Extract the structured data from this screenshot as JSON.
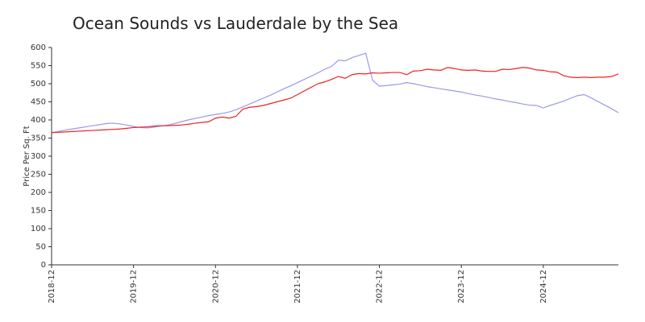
{
  "chart_data": {
    "type": "line",
    "title": "Ocean Sounds vs Lauderdale by the Sea",
    "y_label": "Price Per Sq. Ft",
    "x": [
      "2018-12",
      "2019-01",
      "2019-02",
      "2019-03",
      "2019-04",
      "2019-05",
      "2019-06",
      "2019-07",
      "2019-08",
      "2019-09",
      "2019-10",
      "2019-11",
      "2019-12",
      "2020-01",
      "2020-02",
      "2020-03",
      "2020-04",
      "2020-05",
      "2020-06",
      "2020-07",
      "2020-08",
      "2020-09",
      "2020-10",
      "2020-11",
      "2020-12",
      "2021-01",
      "2021-02",
      "2021-03",
      "2021-04",
      "2021-05",
      "2021-06",
      "2021-07",
      "2021-08",
      "2021-09",
      "2021-10",
      "2021-11",
      "2021-12",
      "2022-01",
      "2022-02",
      "2022-03",
      "2022-04",
      "2022-05",
      "2022-06",
      "2022-07",
      "2022-08",
      "2022-09",
      "2022-10",
      "2022-11",
      "2022-12",
      "2023-01",
      "2023-02",
      "2023-03",
      "2023-04",
      "2023-05",
      "2023-06",
      "2023-07",
      "2023-08",
      "2023-09",
      "2023-10",
      "2023-11",
      "2023-12",
      "2024-01",
      "2024-02",
      "2024-03",
      "2024-04",
      "2024-05",
      "2024-06",
      "2024-07",
      "2024-08",
      "2024-09",
      "2024-10",
      "2024-11",
      "2024-12",
      "2025-01",
      "2025-02",
      "2025-03",
      "2025-04",
      "2025-05",
      "2025-06",
      "2025-07",
      "2025-08",
      "2025-09",
      "2025-10",
      "2025-11"
    ],
    "xlim": [
      "2018-12",
      "2025-11"
    ],
    "xticks": [
      "2018-12",
      "2019-12",
      "2020-12",
      "2021-12",
      "2022-12",
      "2023-12",
      "2024-12"
    ],
    "series": [
      {
        "color": "#9999ee",
        "values": [
          365,
          368,
          372,
          375,
          378,
          381,
          384,
          387,
          390,
          391,
          389,
          386,
          382,
          379,
          378,
          380,
          383,
          386,
          390,
          395,
          400,
          404,
          408,
          412,
          415,
          418,
          422,
          428,
          436,
          444,
          452,
          460,
          468,
          477,
          486,
          494,
          503,
          512,
          521,
          530,
          540,
          548,
          565,
          563,
          572,
          578,
          584,
          510,
          493,
          495,
          497,
          499,
          503,
          500,
          496,
          492,
          489,
          486,
          483,
          480,
          477,
          473,
          469,
          466,
          462,
          458,
          455,
          451,
          448,
          444,
          441,
          440,
          433,
          440,
          446,
          452,
          460,
          467,
          470,
          461,
          451,
          441,
          431,
          420
        ]
      },
      {
        "color": "#ee2222",
        "values": [
          365,
          366,
          367,
          368,
          369,
          370,
          371,
          372,
          373,
          374,
          375,
          377,
          379,
          380,
          381,
          383,
          384,
          384,
          385,
          386,
          388,
          391,
          393,
          395,
          405,
          408,
          405,
          410,
          430,
          435,
          437,
          440,
          445,
          450,
          455,
          460,
          470,
          480,
          490,
          500,
          505,
          512,
          520,
          515,
          525,
          528,
          527,
          530,
          529,
          530,
          531,
          531,
          525,
          535,
          536,
          540,
          538,
          537,
          545,
          542,
          538,
          537,
          538,
          535,
          534,
          534,
          540,
          539,
          542,
          545,
          543,
          538,
          537,
          533,
          532,
          522,
          518,
          517,
          518,
          517,
          518,
          518,
          520,
          527
        ]
      }
    ],
    "ylim": [
      0,
      600
    ],
    "yticks": [
      0,
      50,
      100,
      150,
      200,
      250,
      300,
      350,
      400,
      450,
      500,
      550,
      600
    ],
    "grid": false
  }
}
